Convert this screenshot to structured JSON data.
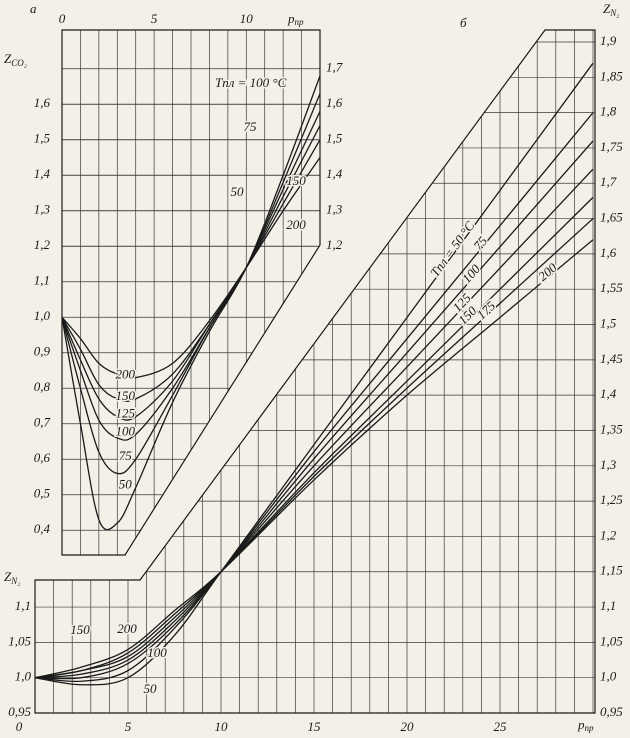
{
  "chart_data": [
    {
      "type": "line",
      "panel_label": "а",
      "xlabel": "p",
      "xlabel_sub": "пр",
      "ylabel": "Z",
      "ylabel_sub": "CO₂",
      "annotation": "Tпл = 100 °C",
      "x": [
        0,
        1,
        2,
        3,
        4,
        6,
        8,
        10,
        12,
        14
      ],
      "xlim": [
        0,
        14
      ],
      "ylim": [
        0.35,
        1.75
      ],
      "xticks": [
        0,
        5,
        10
      ],
      "xminorticks": [
        1,
        2,
        3,
        4,
        6,
        7,
        8,
        9,
        11,
        12,
        13,
        14
      ],
      "yticks": [
        {
          "value": 0.4,
          "label": "0,4"
        },
        {
          "value": 0.5,
          "label": "0,5"
        },
        {
          "value": 0.6,
          "label": "0,6"
        },
        {
          "value": 0.7,
          "label": "0,7"
        },
        {
          "value": 0.8,
          "label": "0,8"
        },
        {
          "value": 0.9,
          "label": "0,9"
        },
        {
          "value": 1,
          "label": "1,0"
        },
        {
          "value": 1.1,
          "label": "1,1"
        },
        {
          "value": 1.2,
          "label": "1,2"
        },
        {
          "value": 1.3,
          "label": "1,3"
        },
        {
          "value": 1.4,
          "label": "1,4"
        },
        {
          "value": 1.5,
          "label": "1,5"
        },
        {
          "value": 1.6,
          "label": "1,6"
        }
      ],
      "yticks_right": [
        {
          "value": 1.2,
          "label": "1,2"
        },
        {
          "value": 1.3,
          "label": "1,3"
        },
        {
          "value": 1.4,
          "label": "1,4"
        },
        {
          "value": 1.5,
          "label": "1,5"
        },
        {
          "value": 1.6,
          "label": "1,6"
        },
        {
          "value": 1.7,
          "label": "1,7"
        }
      ],
      "grid": true,
      "series": [
        {
          "name": "50",
          "color": "#1a1a1a",
          "values": [
            1.0,
            0.7,
            0.43,
            0.42,
            0.52,
            0.76,
            0.96,
            1.14,
            1.4,
            1.68
          ]
        },
        {
          "name": "75",
          "color": "#1a1a1a",
          "values": [
            1.0,
            0.8,
            0.62,
            0.56,
            0.6,
            0.78,
            0.97,
            1.14,
            1.38,
            1.63
          ]
        },
        {
          "name": "100",
          "color": "#1a1a1a",
          "values": [
            1.0,
            0.85,
            0.71,
            0.66,
            0.67,
            0.8,
            0.97,
            1.14,
            1.36,
            1.58
          ]
        },
        {
          "name": "125",
          "color": "#1a1a1a",
          "values": [
            1.0,
            0.88,
            0.77,
            0.72,
            0.72,
            0.82,
            0.98,
            1.14,
            1.34,
            1.54
          ]
        },
        {
          "name": "150",
          "color": "#1a1a1a",
          "values": [
            1.0,
            0.91,
            0.81,
            0.77,
            0.77,
            0.84,
            0.98,
            1.14,
            1.32,
            1.5
          ]
        },
        {
          "name": "200",
          "color": "#1a1a1a",
          "values": [
            1.0,
            0.94,
            0.87,
            0.84,
            0.83,
            0.87,
            0.99,
            1.14,
            1.3,
            1.45
          ]
        }
      ]
    },
    {
      "type": "line",
      "panel_label": "б",
      "xlabel": "p",
      "xlabel_sub": "пр",
      "ylabel": "Z",
      "ylabel_sub": "N₂",
      "annotation": "Tпл = 50 °C",
      "x": [
        0,
        2.5,
        5,
        7.5,
        10,
        15,
        20,
        25,
        30
      ],
      "xlim": [
        0,
        30
      ],
      "ylim": [
        0.95,
        1.9
      ],
      "xticks": [
        0,
        5,
        10,
        15,
        20,
        25
      ],
      "xminorticks": [
        1,
        2,
        3,
        4,
        6,
        7,
        8,
        9,
        11,
        12,
        13,
        14,
        16,
        17,
        18,
        19,
        21,
        22,
        23,
        24,
        26,
        27,
        28,
        29,
        30
      ],
      "yticks": [
        {
          "value": 0.95,
          "label": "0,95"
        },
        {
          "value": 1,
          "label": "1,0"
        },
        {
          "value": 1.05,
          "label": "1,05"
        },
        {
          "value": 1.1,
          "label": "1,1"
        },
        {
          "value": 1.15,
          "label": "1,15"
        },
        {
          "value": 1.2,
          "label": "1,2"
        },
        {
          "value": 1.25,
          "label": "1,25"
        },
        {
          "value": 1.3,
          "label": "1,3"
        },
        {
          "value": 1.35,
          "label": "1,35"
        },
        {
          "value": 1.4,
          "label": "1,4"
        },
        {
          "value": 1.45,
          "label": "1,45"
        },
        {
          "value": 1.5,
          "label": "1,5"
        },
        {
          "value": 1.55,
          "label": "1,55"
        },
        {
          "value": 1.6,
          "label": "1,6"
        },
        {
          "value": 1.65,
          "label": "1,65"
        },
        {
          "value": 1.7,
          "label": "1,7"
        },
        {
          "value": 1.75,
          "label": "1,75"
        },
        {
          "value": 1.8,
          "label": "1,8"
        },
        {
          "value": 1.85,
          "label": "1,85"
        },
        {
          "value": 1.9,
          "label": "1,9"
        }
      ],
      "yticks_left": [
        {
          "value": 0.95,
          "label": "0,95"
        },
        {
          "value": 1,
          "label": "1,0"
        },
        {
          "value": 1.05,
          "label": "1,05"
        },
        {
          "value": 1.1,
          "label": "1,1"
        }
      ],
      "grid": true,
      "series": [
        {
          "name": "50",
          "color": "#1a1a1a",
          "values": [
            1.0,
            0.99,
            1.0,
            1.06,
            1.15,
            1.33,
            1.51,
            1.69,
            1.87
          ]
        },
        {
          "name": "75",
          "color": "#1a1a1a",
          "values": [
            1.0,
            0.995,
            1.01,
            1.07,
            1.15,
            1.32,
            1.48,
            1.64,
            1.8
          ]
        },
        {
          "name": "100",
          "color": "#1a1a1a",
          "values": [
            1.0,
            1.0,
            1.02,
            1.075,
            1.15,
            1.31,
            1.46,
            1.61,
            1.76
          ]
        },
        {
          "name": "125",
          "color": "#1a1a1a",
          "values": [
            1.0,
            1.005,
            1.025,
            1.08,
            1.15,
            1.3,
            1.44,
            1.58,
            1.72
          ]
        },
        {
          "name": "150",
          "color": "#1a1a1a",
          "values": [
            1.0,
            1.01,
            1.03,
            1.085,
            1.15,
            1.29,
            1.42,
            1.55,
            1.68
          ]
        },
        {
          "name": "175",
          "color": "#1a1a1a",
          "values": [
            1.0,
            1.01,
            1.035,
            1.09,
            1.15,
            1.285,
            1.41,
            1.53,
            1.65
          ]
        },
        {
          "name": "200",
          "color": "#1a1a1a",
          "values": [
            1.0,
            1.015,
            1.04,
            1.095,
            1.15,
            1.28,
            1.4,
            1.51,
            1.62
          ]
        }
      ]
    }
  ]
}
